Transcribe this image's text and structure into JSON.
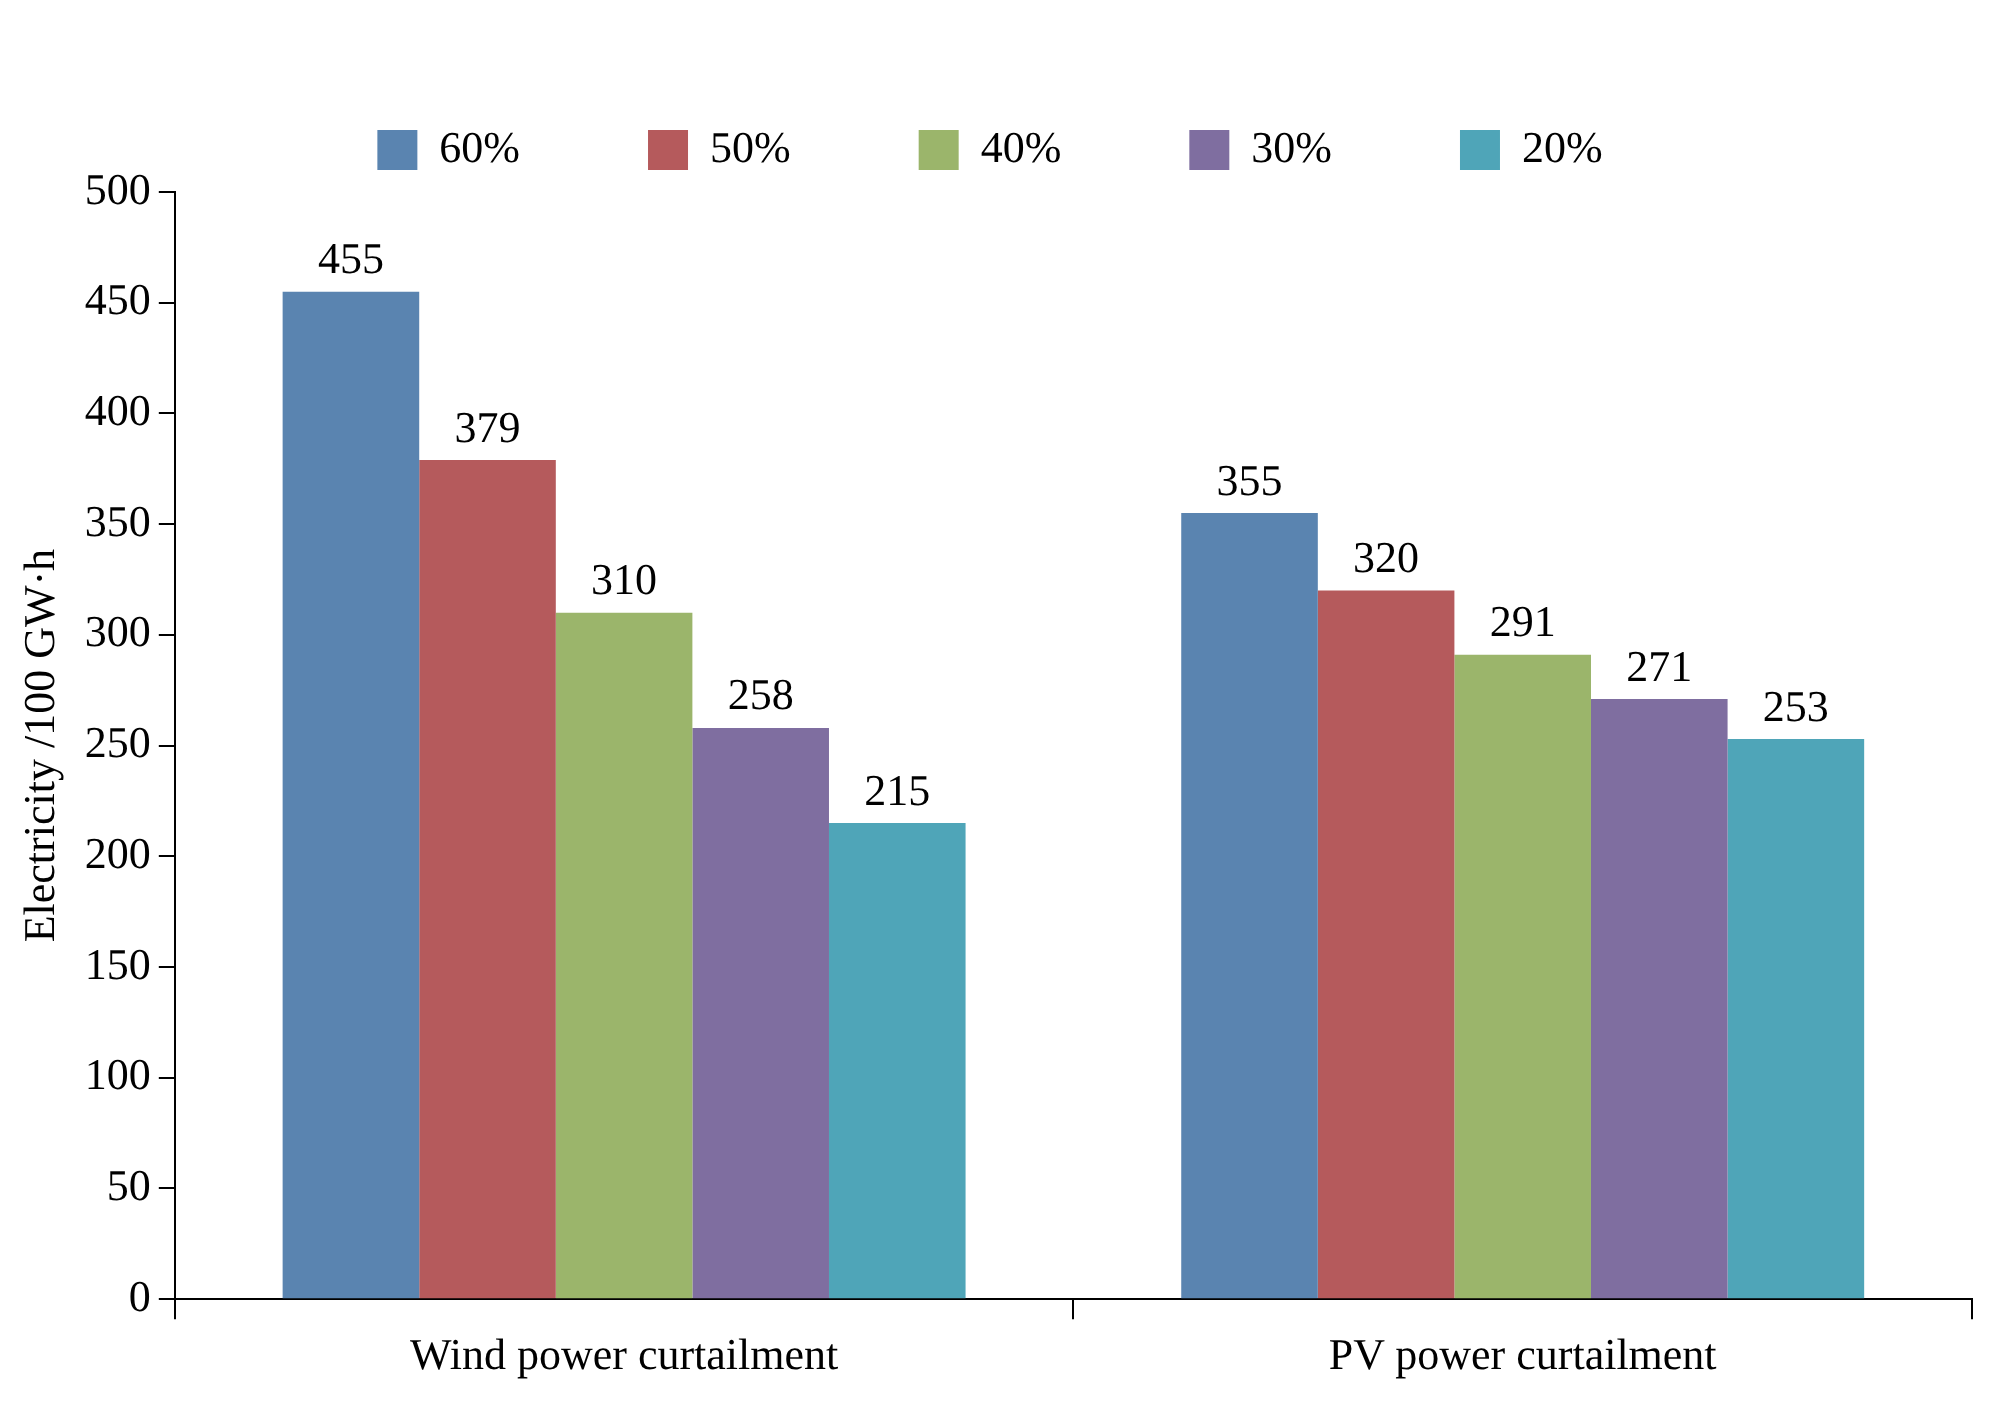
{
  "chart_data": {
    "type": "bar",
    "ylabel": "Electricity /100 GW·h",
    "categories": [
      "Wind power curtailment",
      "PV power curtailment"
    ],
    "series": [
      {
        "name": "60%",
        "color": "#5a84b0",
        "values": [
          455,
          355
        ]
      },
      {
        "name": "50%",
        "color": "#b55a5c",
        "values": [
          379,
          320
        ]
      },
      {
        "name": "40%",
        "color": "#9bb56b",
        "values": [
          310,
          291
        ]
      },
      {
        "name": "30%",
        "color": "#7f6ea0",
        "values": [
          258,
          271
        ]
      },
      {
        "name": "20%",
        "color": "#4fa5b8",
        "values": [
          215,
          253
        ]
      }
    ],
    "ylim": [
      0,
      500
    ],
    "yticks": [
      0,
      50,
      100,
      150,
      200,
      250,
      300,
      350,
      400,
      450,
      500
    ],
    "grid": false,
    "legend": "top",
    "data_labels": true
  }
}
